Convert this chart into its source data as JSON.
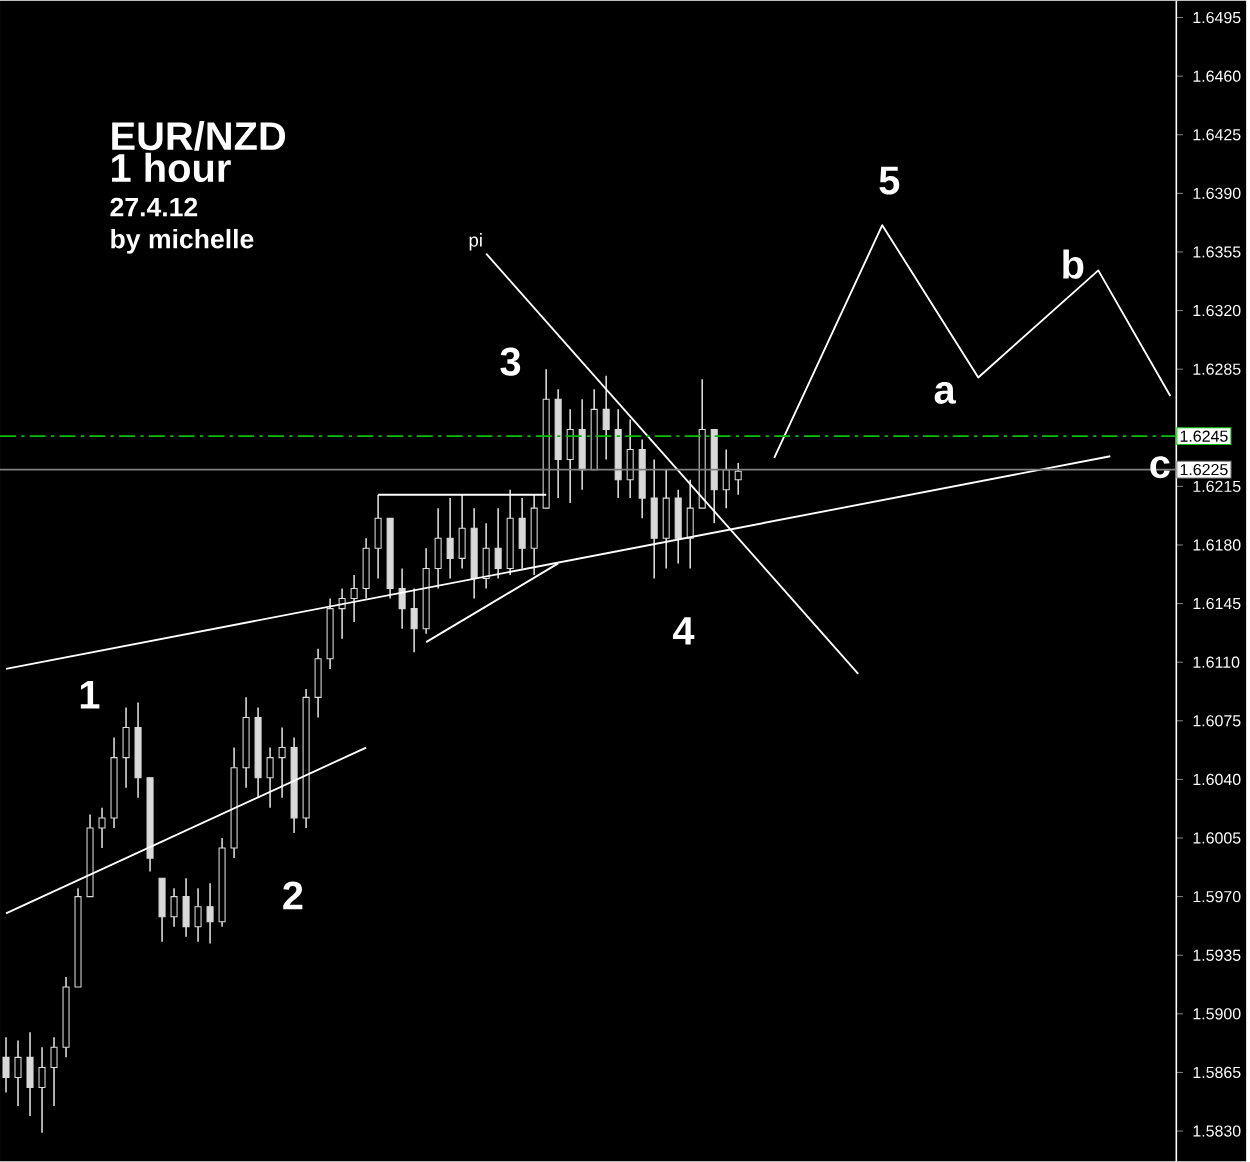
{
  "chart_data": {
    "type": "candlestick",
    "title": "EUR/NZD",
    "subtitle": "1 hour",
    "categories": [
      null,
      null,
      null,
      null,
      null,
      null,
      null,
      null,
      null,
      null,
      null,
      null,
      null,
      null,
      null,
      null,
      null,
      null,
      null,
      null,
      null,
      null,
      null,
      null,
      null,
      null,
      null,
      null,
      null,
      null,
      null,
      null,
      null,
      null,
      null,
      null,
      null,
      null,
      null,
      null,
      null,
      null,
      null,
      null,
      null,
      null,
      null,
      null,
      null,
      null,
      null,
      null,
      null,
      null,
      null,
      null,
      null,
      null,
      null,
      null,
      null,
      null,
      null,
      null,
      null,
      null,
      null,
      null,
      null,
      null,
      null,
      null,
      null,
      null,
      null,
      null,
      null,
      null,
      null,
      null,
      null,
      null,
      null,
      null,
      null,
      null,
      null,
      null,
      null,
      null,
      null,
      null,
      null,
      null,
      null,
      null,
      null,
      null
    ],
    "color": "#d9d9d9",
    "ohlc": [
      [
        1.5874,
        1.5886,
        1.5853,
        1.5862
      ],
      [
        1.5862,
        1.5884,
        1.5845,
        1.5874
      ],
      [
        1.5874,
        1.5889,
        1.5839,
        1.5856
      ],
      [
        1.5856,
        1.588,
        1.5829,
        1.5868
      ],
      [
        1.5868,
        1.5886,
        1.5845,
        1.588
      ],
      [
        1.588,
        1.5922,
        1.5874,
        1.5916
      ],
      [
        1.5916,
        1.5975,
        1.5916,
        1.597
      ],
      [
        1.597,
        1.6019,
        1.597,
        1.6011
      ],
      [
        1.6011,
        1.6023,
        1.5999,
        1.6017
      ],
      [
        1.6017,
        1.6065,
        1.6011,
        1.6053
      ],
      [
        1.6053,
        1.6083,
        1.6035,
        1.6071
      ],
      [
        1.6071,
        1.6086,
        1.6029,
        1.6041
      ],
      [
        1.6041,
        1.6041,
        1.5985,
        1.5993
      ],
      [
        1.5981,
        1.5981,
        1.5943,
        1.5958
      ],
      [
        1.5958,
        1.5975,
        1.5952,
        1.597
      ],
      [
        1.597,
        1.5981,
        1.5946,
        1.5952
      ],
      [
        1.5952,
        1.5975,
        1.5943,
        1.5964
      ],
      [
        1.5964,
        1.5978,
        1.5942,
        1.5955
      ],
      [
        1.5955,
        1.6005,
        1.5952,
        1.5999
      ],
      [
        1.5999,
        1.6059,
        1.5993,
        1.6047
      ],
      [
        1.6047,
        1.6089,
        1.6035,
        1.6077
      ],
      [
        1.6077,
        1.6083,
        1.6029,
        1.6041
      ],
      [
        1.6041,
        1.6059,
        1.6023,
        1.6053
      ],
      [
        1.6053,
        1.6071,
        1.6029,
        1.6059
      ],
      [
        1.6059,
        1.6065,
        1.6008,
        1.6017
      ],
      [
        1.6017,
        1.6094,
        1.6011,
        1.6089
      ],
      [
        1.6089,
        1.6118,
        1.6077,
        1.6112
      ],
      [
        1.6112,
        1.6148,
        1.6106,
        1.6142
      ],
      [
        1.6142,
        1.6154,
        1.6124,
        1.6148
      ],
      [
        1.6148,
        1.6162,
        1.6134,
        1.6154
      ],
      [
        1.6154,
        1.6184,
        1.6148,
        1.6178
      ],
      [
        1.6178,
        1.621,
        1.616,
        1.6196
      ],
      [
        1.6196,
        1.6196,
        1.6148,
        1.6154
      ],
      [
        1.6154,
        1.6166,
        1.613,
        1.6142
      ],
      [
        1.6142,
        1.6154,
        1.6116,
        1.613
      ],
      [
        1.613,
        1.6178,
        1.6127,
        1.6166
      ],
      [
        1.6166,
        1.6202,
        1.6154,
        1.6184
      ],
      [
        1.6184,
        1.6208,
        1.616,
        1.6172
      ],
      [
        1.6172,
        1.621,
        1.6166,
        1.619
      ],
      [
        1.619,
        1.6202,
        1.6148,
        1.616
      ],
      [
        1.616,
        1.6193,
        1.6154,
        1.6178
      ],
      [
        1.6178,
        1.6202,
        1.616,
        1.6166
      ],
      [
        1.6166,
        1.6213,
        1.6162,
        1.6196
      ],
      [
        1.6196,
        1.6208,
        1.6166,
        1.6178
      ],
      [
        1.6178,
        1.621,
        1.6162,
        1.6202
      ],
      [
        1.6202,
        1.6285,
        1.6202,
        1.6267
      ],
      [
        1.6267,
        1.6273,
        1.6208,
        1.6231
      ],
      [
        1.6231,
        1.6261,
        1.6205,
        1.6249
      ],
      [
        1.6249,
        1.6267,
        1.6213,
        1.6225
      ],
      [
        1.6225,
        1.6273,
        1.6225,
        1.6261
      ],
      [
        1.6261,
        1.6281,
        1.6231,
        1.6249
      ],
      [
        1.6249,
        1.6261,
        1.6208,
        1.6219
      ],
      [
        1.6219,
        1.6255,
        1.6208,
        1.6237
      ],
      [
        1.6237,
        1.6243,
        1.6196,
        1.6208
      ],
      [
        1.6208,
        1.6231,
        1.616,
        1.6184
      ],
      [
        1.6184,
        1.6225,
        1.6166,
        1.6208
      ],
      [
        1.6208,
        1.6213,
        1.6169,
        1.6184
      ],
      [
        1.6184,
        1.6219,
        1.6166,
        1.6202
      ],
      [
        1.6202,
        1.6279,
        1.6202,
        1.6249
      ],
      [
        1.6249,
        1.6249,
        1.6193,
        1.6213
      ],
      [
        1.6213,
        1.6237,
        1.6202,
        1.6225
      ],
      [
        1.6219,
        1.6229,
        1.621,
        1.6224
      ],
      null,
      null,
      null,
      null,
      null,
      null,
      null,
      null,
      null,
      null,
      null,
      null,
      null,
      null,
      null,
      null,
      null,
      null,
      null,
      null,
      null,
      null,
      null,
      null,
      null,
      null,
      null,
      null,
      null,
      null,
      null,
      null,
      null,
      null,
      null,
      null
    ],
    "series": [
      {
        "type": "line",
        "color": "#ffffff",
        "values": [
          1.6106,
          null,
          null,
          null,
          null,
          null,
          null,
          null,
          null,
          null,
          null,
          null,
          null,
          null,
          null,
          null,
          null,
          null,
          null,
          null,
          null,
          null,
          null,
          null,
          null,
          null,
          null,
          null,
          null,
          null,
          null,
          null,
          null,
          null,
          null,
          null,
          null,
          null,
          null,
          null,
          null,
          null,
          null,
          null,
          null,
          null,
          null,
          null,
          null,
          null,
          null,
          null,
          null,
          null,
          null,
          null,
          null,
          null,
          null,
          null,
          null,
          null,
          null,
          null,
          null,
          null,
          null,
          null,
          null,
          null,
          null,
          null,
          null,
          null,
          null,
          null,
          null,
          null,
          null,
          null,
          null,
          null,
          null,
          null,
          null,
          null,
          null,
          null,
          null,
          null,
          null,
          null,
          1.6233,
          null,
          null,
          null,
          null,
          null
        ]
      },
      {
        "type": "line",
        "color": "#ffffff",
        "values": [
          1.596,
          null,
          null,
          null,
          null,
          null,
          null,
          null,
          null,
          null,
          null,
          null,
          null,
          null,
          null,
          null,
          null,
          null,
          null,
          null,
          null,
          null,
          null,
          null,
          null,
          null,
          null,
          null,
          null,
          null,
          1.6059,
          null,
          null,
          null,
          null,
          null,
          null,
          null,
          null,
          null,
          null,
          null,
          null,
          null,
          null,
          null,
          null,
          null,
          null,
          null,
          null,
          null,
          null,
          null,
          null,
          null,
          null,
          null,
          null,
          null,
          null,
          null,
          null,
          null,
          null,
          null,
          null,
          null,
          null,
          null,
          null,
          null,
          null,
          null,
          null,
          null,
          null,
          null,
          null,
          null,
          null,
          null,
          null,
          null,
          null,
          null,
          null,
          null,
          null,
          null,
          null,
          null,
          null,
          null,
          null,
          null,
          null,
          null
        ]
      },
      {
        "type": "line",
        "color": "#ffffff",
        "values": [
          null,
          null,
          null,
          null,
          null,
          null,
          null,
          null,
          null,
          null,
          null,
          null,
          null,
          null,
          null,
          null,
          null,
          null,
          null,
          null,
          null,
          null,
          null,
          null,
          null,
          null,
          null,
          null,
          null,
          null,
          null,
          1.621,
          null,
          null,
          null,
          null,
          null,
          null,
          null,
          null,
          null,
          null,
          null,
          null,
          null,
          1.621,
          null,
          null,
          null,
          null,
          null,
          null,
          null,
          null,
          null,
          null,
          null,
          null,
          null,
          null,
          null,
          null,
          null,
          null,
          null,
          null,
          null,
          null,
          null,
          null,
          null,
          null,
          null,
          null,
          null,
          null,
          null,
          null,
          null,
          null,
          null,
          null,
          null,
          null,
          null,
          null,
          null,
          null,
          null,
          null,
          null,
          null,
          null,
          null,
          null,
          null,
          null,
          null
        ]
      },
      {
        "type": "line",
        "color": "#ffffff",
        "values": [
          null,
          null,
          null,
          null,
          null,
          null,
          null,
          null,
          null,
          null,
          null,
          null,
          null,
          null,
          null,
          null,
          null,
          null,
          null,
          null,
          null,
          null,
          null,
          null,
          null,
          null,
          null,
          null,
          null,
          null,
          null,
          null,
          null,
          null,
          null,
          1.6122,
          null,
          null,
          null,
          null,
          null,
          null,
          null,
          null,
          null,
          null,
          1.6169,
          null,
          null,
          null,
          null,
          null,
          null,
          null,
          null,
          null,
          null,
          null,
          null,
          null,
          null,
          null,
          null,
          null,
          null,
          null,
          null,
          null,
          null,
          null,
          null,
          null,
          null,
          null,
          null,
          null,
          null,
          null,
          null,
          null,
          null,
          null,
          null,
          null,
          null,
          null,
          null,
          null,
          null,
          null,
          null,
          null,
          null,
          null,
          null,
          null,
          null,
          null
        ]
      },
      {
        "type": "line",
        "color": "#ffffff",
        "name": "pi",
        "values": [
          null,
          null,
          null,
          null,
          null,
          null,
          null,
          null,
          null,
          null,
          null,
          null,
          null,
          null,
          null,
          null,
          null,
          null,
          null,
          null,
          null,
          null,
          null,
          null,
          null,
          null,
          null,
          null,
          null,
          null,
          null,
          null,
          null,
          null,
          null,
          null,
          null,
          null,
          null,
          null,
          1.6354,
          null,
          null,
          null,
          null,
          null,
          null,
          null,
          null,
          null,
          null,
          null,
          null,
          null,
          null,
          null,
          null,
          null,
          null,
          null,
          null,
          null,
          null,
          null,
          null,
          null,
          null,
          null,
          null,
          null,
          null,
          1.6103,
          null,
          null,
          null,
          null,
          null,
          null,
          null,
          null,
          null,
          null,
          null,
          null,
          null,
          null,
          null,
          null,
          null,
          null,
          null,
          null,
          null,
          null,
          null,
          null,
          null,
          null
        ]
      },
      {
        "type": "line",
        "color": "#ffffff",
        "values": [
          null,
          null,
          null,
          null,
          null,
          null,
          null,
          null,
          null,
          null,
          null,
          null,
          null,
          null,
          null,
          null,
          null,
          null,
          null,
          null,
          null,
          null,
          null,
          null,
          null,
          null,
          null,
          null,
          null,
          null,
          null,
          null,
          null,
          null,
          null,
          null,
          null,
          null,
          null,
          null,
          null,
          null,
          null,
          null,
          null,
          null,
          null,
          null,
          null,
          null,
          null,
          null,
          null,
          null,
          null,
          null,
          null,
          null,
          null,
          null,
          null,
          null,
          null,
          null,
          1.6232,
          null,
          null,
          null,
          null,
          null,
          null,
          null,
          null,
          1.6371,
          null,
          null,
          null,
          null,
          null,
          null,
          null,
          1.628,
          null,
          null,
          null,
          null,
          null,
          null,
          null,
          null,
          null,
          1.6344,
          null,
          null,
          null,
          null,
          null,
          1.6269
        ]
      }
    ],
    "ref_lines": [
      {
        "axis": "y",
        "value": 1.6245,
        "label": "1.6245",
        "color": "#00c000",
        "line_style": "dashed"
      },
      {
        "axis": "y",
        "value": 1.6225,
        "label": "1.6225",
        "color": "#808080",
        "line_style": "solid"
      }
    ],
    "ylim": [
      1.5812,
      1.6505
    ],
    "yticks": [
      {
        "value": 1.6495,
        "label": "1.6495"
      },
      {
        "value": 1.646,
        "label": "1.6460"
      },
      {
        "value": 1.6425,
        "label": "1.6425"
      },
      {
        "value": 1.639,
        "label": "1.6390"
      },
      {
        "value": 1.6355,
        "label": "1.6355"
      },
      {
        "value": 1.632,
        "label": "1.6320"
      },
      {
        "value": 1.6285,
        "label": "1.6285"
      },
      {
        "value": 1.625,
        "label": null
      },
      {
        "value": 1.6215,
        "label": "1.6215"
      },
      {
        "value": 1.618,
        "label": "1.6180"
      },
      {
        "value": 1.6145,
        "label": "1.6145"
      },
      {
        "value": 1.611,
        "label": "1.6110"
      },
      {
        "value": 1.6075,
        "label": "1.6075"
      },
      {
        "value": 1.604,
        "label": "1.6040"
      },
      {
        "value": 1.6005,
        "label": "1.6005"
      },
      {
        "value": 1.597,
        "label": "1.5970"
      },
      {
        "value": 1.5935,
        "label": "1.5935"
      },
      {
        "value": 1.59,
        "label": "1.5900"
      },
      {
        "value": 1.5865,
        "label": "1.5865"
      },
      {
        "value": 1.583,
        "label": "1.5830"
      }
    ],
    "tick_labels": "y",
    "marker": "none",
    "line_style": "solid",
    "annotations": [
      "27.4.12",
      "by michelle",
      "1",
      "2",
      "3",
      "4",
      "5",
      "a",
      "b",
      "c"
    ]
  }
}
